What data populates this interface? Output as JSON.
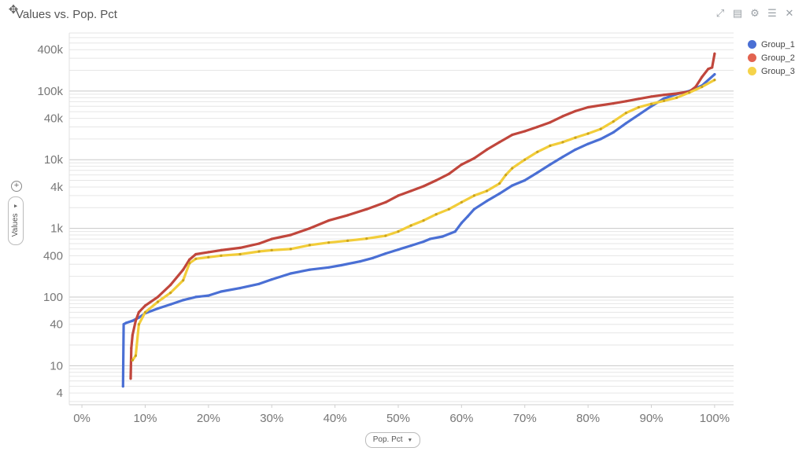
{
  "window": {
    "title": "Values vs. Pop. Pct",
    "move_icon": "move-icon",
    "tools": [
      {
        "name": "expand-icon",
        "glyph": "⤢"
      },
      {
        "name": "notes-icon",
        "glyph": "▤"
      },
      {
        "name": "gear-icon",
        "glyph": "⚙"
      },
      {
        "name": "list-icon",
        "glyph": "☰"
      },
      {
        "name": "close-icon",
        "glyph": "✕"
      }
    ]
  },
  "axis_controls": {
    "y_field": "Values",
    "y_add": "+",
    "x_field": "Pop. Pct",
    "caret": "▼"
  },
  "chart_data": {
    "type": "line",
    "title": "Values vs. Pop. Pct",
    "xlabel": "Pop. Pct",
    "ylabel": "Values",
    "xlim": [
      -0.02,
      1.03
    ],
    "ylim": [
      2.7,
      700000
    ],
    "yscale": "log",
    "x_ticks": [
      0,
      0.1,
      0.2,
      0.3,
      0.4,
      0.5,
      0.6,
      0.7,
      0.8,
      0.9,
      1.0
    ],
    "x_tick_labels": [
      "0%",
      "10%",
      "20%",
      "30%",
      "40%",
      "50%",
      "60%",
      "70%",
      "80%",
      "90%",
      "100%"
    ],
    "y_ticks": [
      4,
      10,
      40,
      100,
      400,
      1000,
      4000,
      10000,
      40000,
      100000,
      400000
    ],
    "y_tick_labels": [
      "4",
      "10",
      "40",
      "100",
      "400",
      "1k",
      "4k",
      "10k",
      "40k",
      "100k",
      "400k"
    ],
    "grid": true,
    "legend_position": "right-top",
    "series": [
      {
        "name": "Group_1",
        "color": "#4a6fd4",
        "points": [
          [
            0.065,
            5
          ],
          [
            0.066,
            40
          ],
          [
            0.07,
            42
          ],
          [
            0.08,
            45
          ],
          [
            0.09,
            50
          ],
          [
            0.1,
            58
          ],
          [
            0.12,
            68
          ],
          [
            0.14,
            78
          ],
          [
            0.16,
            90
          ],
          [
            0.18,
            100
          ],
          [
            0.2,
            105
          ],
          [
            0.22,
            120
          ],
          [
            0.25,
            135
          ],
          [
            0.28,
            155
          ],
          [
            0.3,
            180
          ],
          [
            0.33,
            220
          ],
          [
            0.36,
            250
          ],
          [
            0.39,
            270
          ],
          [
            0.41,
            290
          ],
          [
            0.44,
            330
          ],
          [
            0.46,
            370
          ],
          [
            0.48,
            430
          ],
          [
            0.5,
            490
          ],
          [
            0.52,
            560
          ],
          [
            0.54,
            640
          ],
          [
            0.55,
            700
          ],
          [
            0.57,
            760
          ],
          [
            0.59,
            900
          ],
          [
            0.6,
            1200
          ],
          [
            0.61,
            1500
          ],
          [
            0.62,
            1900
          ],
          [
            0.64,
            2500
          ],
          [
            0.66,
            3200
          ],
          [
            0.68,
            4200
          ],
          [
            0.7,
            5000
          ],
          [
            0.72,
            6500
          ],
          [
            0.74,
            8500
          ],
          [
            0.76,
            11000
          ],
          [
            0.78,
            14000
          ],
          [
            0.8,
            17000
          ],
          [
            0.82,
            20000
          ],
          [
            0.84,
            25000
          ],
          [
            0.86,
            34000
          ],
          [
            0.88,
            45000
          ],
          [
            0.9,
            60000
          ],
          [
            0.92,
            78000
          ],
          [
            0.94,
            90000
          ],
          [
            0.96,
            100000
          ],
          [
            0.98,
            120000
          ],
          [
            1.0,
            175000
          ]
        ]
      },
      {
        "name": "Group_2",
        "color": "#c0463c",
        "points": [
          [
            0.077,
            6.5
          ],
          [
            0.078,
            18
          ],
          [
            0.08,
            28
          ],
          [
            0.085,
            45
          ],
          [
            0.09,
            60
          ],
          [
            0.1,
            75
          ],
          [
            0.12,
            100
          ],
          [
            0.14,
            150
          ],
          [
            0.16,
            250
          ],
          [
            0.17,
            350
          ],
          [
            0.18,
            420
          ],
          [
            0.2,
            450
          ],
          [
            0.22,
            480
          ],
          [
            0.25,
            520
          ],
          [
            0.28,
            600
          ],
          [
            0.3,
            700
          ],
          [
            0.33,
            800
          ],
          [
            0.36,
            1000
          ],
          [
            0.39,
            1300
          ],
          [
            0.42,
            1550
          ],
          [
            0.45,
            1900
          ],
          [
            0.48,
            2400
          ],
          [
            0.5,
            3000
          ],
          [
            0.52,
            3500
          ],
          [
            0.54,
            4100
          ],
          [
            0.56,
            5000
          ],
          [
            0.58,
            6200
          ],
          [
            0.6,
            8500
          ],
          [
            0.62,
            10500
          ],
          [
            0.64,
            14000
          ],
          [
            0.66,
            18000
          ],
          [
            0.68,
            23000
          ],
          [
            0.7,
            26000
          ],
          [
            0.72,
            30000
          ],
          [
            0.74,
            35000
          ],
          [
            0.76,
            43000
          ],
          [
            0.78,
            51000
          ],
          [
            0.8,
            58000
          ],
          [
            0.82,
            62000
          ],
          [
            0.84,
            66000
          ],
          [
            0.86,
            71000
          ],
          [
            0.88,
            77000
          ],
          [
            0.9,
            83000
          ],
          [
            0.92,
            88000
          ],
          [
            0.94,
            92000
          ],
          [
            0.96,
            98000
          ],
          [
            0.97,
            115000
          ],
          [
            0.98,
            160000
          ],
          [
            0.99,
            210000
          ],
          [
            0.996,
            220000
          ],
          [
            1.0,
            350000
          ]
        ]
      },
      {
        "name": "Group_3",
        "color": "#f2cd3a",
        "points": [
          [
            0.08,
            12
          ],
          [
            0.085,
            14
          ],
          [
            0.09,
            40
          ],
          [
            0.1,
            60
          ],
          [
            0.12,
            85
          ],
          [
            0.14,
            115
          ],
          [
            0.16,
            175
          ],
          [
            0.17,
            310
          ],
          [
            0.18,
            360
          ],
          [
            0.2,
            380
          ],
          [
            0.22,
            400
          ],
          [
            0.25,
            420
          ],
          [
            0.28,
            460
          ],
          [
            0.3,
            480
          ],
          [
            0.33,
            500
          ],
          [
            0.36,
            570
          ],
          [
            0.39,
            620
          ],
          [
            0.42,
            660
          ],
          [
            0.45,
            710
          ],
          [
            0.48,
            780
          ],
          [
            0.5,
            900
          ],
          [
            0.52,
            1100
          ],
          [
            0.54,
            1300
          ],
          [
            0.56,
            1600
          ],
          [
            0.58,
            1900
          ],
          [
            0.6,
            2400
          ],
          [
            0.62,
            3000
          ],
          [
            0.64,
            3500
          ],
          [
            0.66,
            4500
          ],
          [
            0.67,
            6000
          ],
          [
            0.68,
            7500
          ],
          [
            0.7,
            10000
          ],
          [
            0.72,
            13000
          ],
          [
            0.74,
            16000
          ],
          [
            0.76,
            18000
          ],
          [
            0.78,
            21000
          ],
          [
            0.8,
            24000
          ],
          [
            0.82,
            28000
          ],
          [
            0.84,
            36000
          ],
          [
            0.86,
            48000
          ],
          [
            0.88,
            58000
          ],
          [
            0.9,
            65000
          ],
          [
            0.92,
            72000
          ],
          [
            0.94,
            80000
          ],
          [
            0.96,
            95000
          ],
          [
            0.98,
            115000
          ],
          [
            1.0,
            145000
          ]
        ]
      }
    ]
  }
}
